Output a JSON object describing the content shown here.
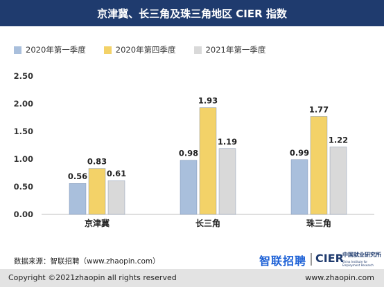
{
  "header": {
    "title": "京津冀、长三角及珠三角地区 CIER 指数"
  },
  "colors": {
    "header_bg": "#1f3b6e"
  },
  "chart_data": {
    "type": "bar",
    "title": "京津冀、长三角及珠三角地区 CIER 指数",
    "categories": [
      "京津冀",
      "长三角",
      "珠三角"
    ],
    "series": [
      {
        "name": "2020年第一季度",
        "color": "#a9bfdc",
        "values": [
          0.56,
          0.98,
          0.99
        ]
      },
      {
        "name": "2020年第四季度",
        "color": "#f3d268",
        "values": [
          0.83,
          1.93,
          1.77
        ]
      },
      {
        "name": "2021年第一季度",
        "color": "#d9d9d9",
        "values": [
          0.61,
          1.19,
          1.22
        ]
      }
    ],
    "ylim": [
      0,
      2.5
    ],
    "yticks": [
      "0.00",
      "0.50",
      "1.00",
      "1.50",
      "2.00",
      "2.50"
    ],
    "grid": false,
    "legend_position": "top-left",
    "data_labels": true
  },
  "source_text": "数据来源：智联招聘（www.zhaopin.com）",
  "brand": {
    "zhaopin": "智联招聘",
    "cier": "CIER",
    "cier_cn": "中国就业研究所",
    "cier_en": "China Institute for Employment Research"
  },
  "footer": {
    "copyright": "Copyright ©2021zhaopin all rights reserved",
    "website": "www.zhaopin.com"
  }
}
